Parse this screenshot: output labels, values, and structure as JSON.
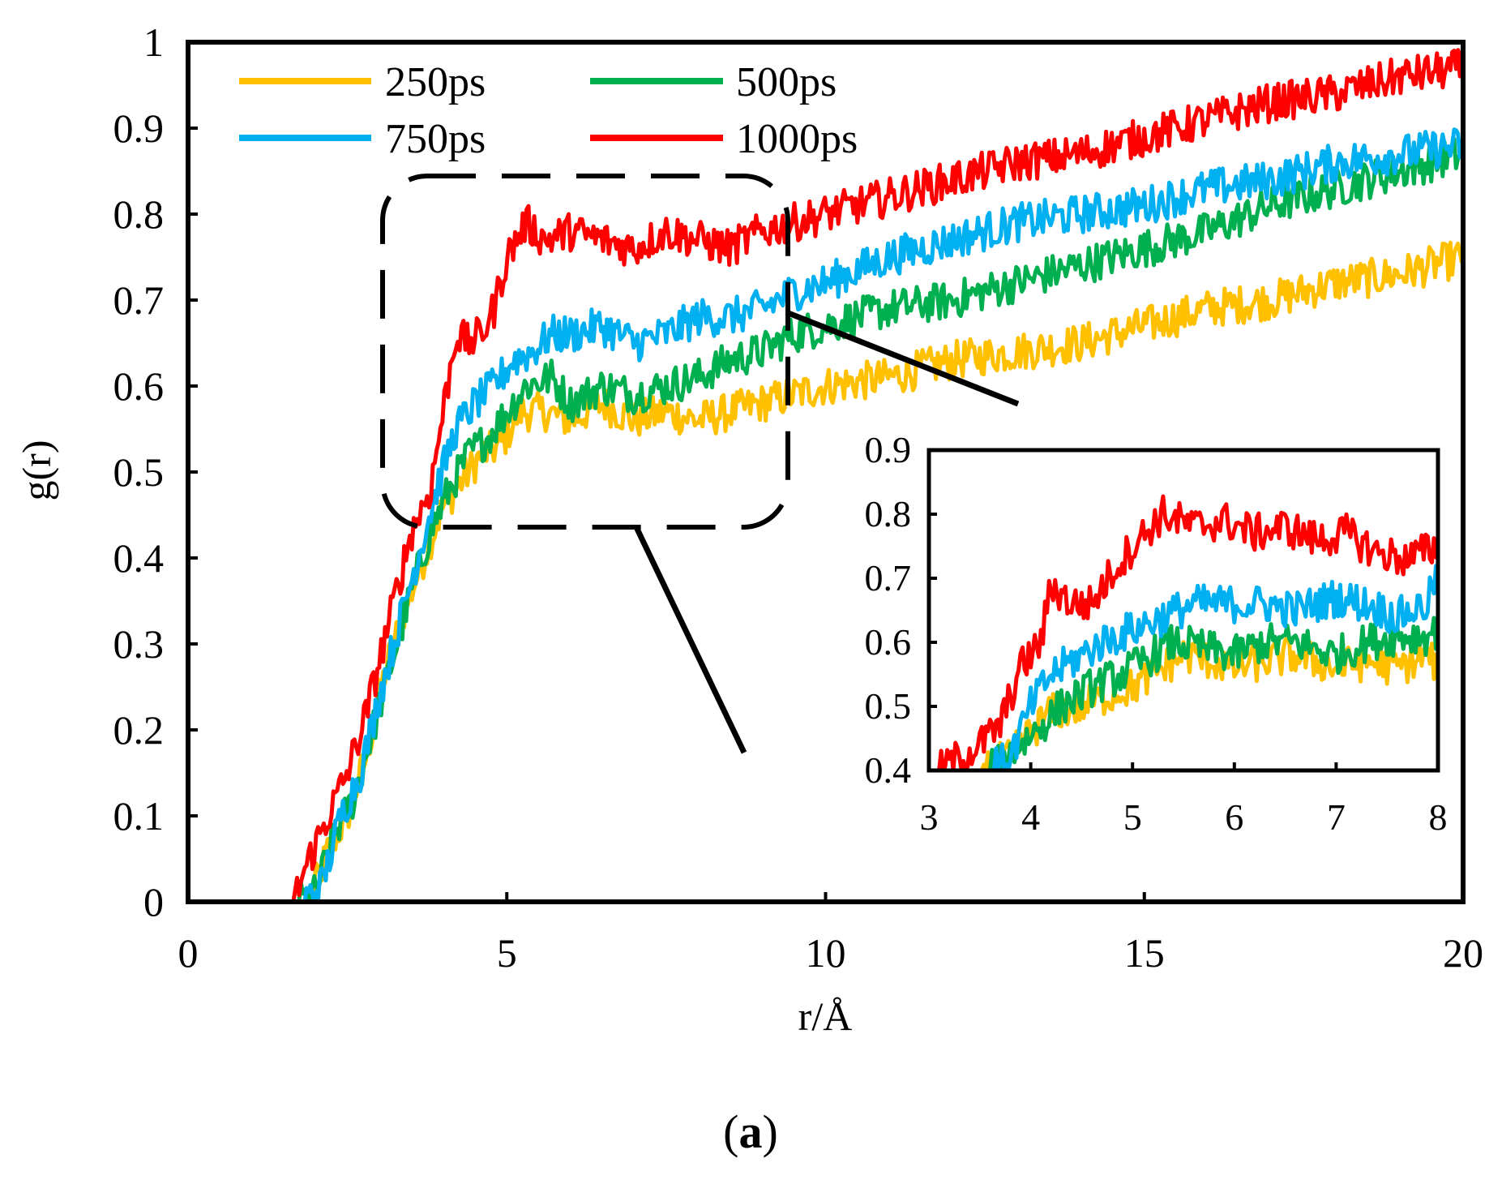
{
  "caption": {
    "open": "(",
    "letter": "a",
    "close": ")"
  },
  "chart_data": [
    {
      "type": "line",
      "role": "main",
      "xlabel": "r/Å",
      "ylabel": "g(r)",
      "xlim": [
        0,
        20
      ],
      "ylim": [
        0,
        1
      ],
      "xticks": [
        "0",
        "5",
        "10",
        "15",
        "20"
      ],
      "yticks": [
        "0",
        "0.1",
        "0.2",
        "0.3",
        "0.4",
        "0.5",
        "0.6",
        "0.7",
        "0.8",
        "0.9",
        "1"
      ],
      "legend_position": "top-left",
      "series": [
        {
          "name": "250ps",
          "color": "#FFC000",
          "x": [
            0,
            1.6,
            1.9,
            2.2,
            2.5,
            2.8,
            3.1,
            3.4,
            3.7,
            4.0,
            4.3,
            4.6,
            4.9,
            5.2,
            5.6,
            6.0,
            6.5,
            7.0,
            7.5,
            8.0,
            8.5,
            9.0,
            9.5,
            10.0,
            11.0,
            12.0,
            13.0,
            14.0,
            15.0,
            16.0,
            17.0,
            18.0,
            19.0,
            20.0
          ],
          "y": [
            0,
            0,
            0.0,
            0.06,
            0.1,
            0.17,
            0.27,
            0.34,
            0.4,
            0.46,
            0.49,
            0.52,
            0.53,
            0.57,
            0.57,
            0.56,
            0.58,
            0.56,
            0.57,
            0.56,
            0.57,
            0.58,
            0.59,
            0.6,
            0.61,
            0.63,
            0.64,
            0.65,
            0.67,
            0.69,
            0.7,
            0.72,
            0.73,
            0.75
          ]
        },
        {
          "name": "500ps",
          "color": "#00B050",
          "x": [
            0,
            1.7,
            2.0,
            2.3,
            2.6,
            2.9,
            3.2,
            3.5,
            3.8,
            4.1,
            4.4,
            4.7,
            5.0,
            5.3,
            5.7,
            6.0,
            6.5,
            7.0,
            7.5,
            8.0,
            8.5,
            9.0,
            9.5,
            10.0,
            11.0,
            12.0,
            13.0,
            14.0,
            15.0,
            16.0,
            17.0,
            18.0,
            19.0,
            20.0
          ],
          "y": [
            0,
            0,
            0.01,
            0.08,
            0.12,
            0.2,
            0.28,
            0.36,
            0.43,
            0.48,
            0.52,
            0.54,
            0.57,
            0.6,
            0.61,
            0.58,
            0.6,
            0.59,
            0.6,
            0.61,
            0.63,
            0.64,
            0.66,
            0.67,
            0.69,
            0.7,
            0.72,
            0.74,
            0.76,
            0.78,
            0.81,
            0.83,
            0.85,
            0.87
          ]
        },
        {
          "name": "750ps",
          "color": "#00B0F0",
          "x": [
            0,
            1.8,
            2.1,
            2.4,
            2.7,
            3.0,
            3.3,
            3.6,
            3.9,
            4.2,
            4.5,
            4.8,
            5.1,
            5.4,
            5.7,
            6.0,
            6.5,
            7.0,
            7.5,
            8.0,
            8.5,
            9.0,
            9.5,
            10.0,
            11.0,
            12.0,
            13.0,
            14.0,
            15.0,
            16.0,
            17.0,
            18.0,
            19.0,
            20.0
          ],
          "y": [
            0,
            0,
            0.02,
            0.1,
            0.15,
            0.24,
            0.32,
            0.4,
            0.48,
            0.55,
            0.58,
            0.6,
            0.63,
            0.64,
            0.66,
            0.66,
            0.67,
            0.65,
            0.66,
            0.68,
            0.68,
            0.69,
            0.71,
            0.72,
            0.75,
            0.77,
            0.79,
            0.8,
            0.81,
            0.83,
            0.84,
            0.86,
            0.87,
            0.88
          ]
        },
        {
          "name": "1000ps",
          "color": "#FF0000",
          "x": [
            0,
            1.65,
            1.9,
            2.2,
            2.5,
            2.8,
            3.0,
            3.2,
            3.5,
            3.8,
            4.0,
            4.2,
            4.4,
            4.6,
            4.8,
            5.0,
            5.3,
            5.6,
            6.0,
            6.5,
            7.0,
            7.5,
            8.0,
            8.5,
            9.0,
            9.5,
            10.0,
            11.0,
            12.0,
            13.0,
            14.0,
            15.0,
            16.0,
            17.0,
            18.0,
            19.0,
            20.0
          ],
          "y": [
            0,
            0,
            0.05,
            0.1,
            0.15,
            0.22,
            0.28,
            0.34,
            0.43,
            0.48,
            0.57,
            0.66,
            0.65,
            0.66,
            0.69,
            0.75,
            0.79,
            0.77,
            0.78,
            0.77,
            0.76,
            0.78,
            0.77,
            0.76,
            0.78,
            0.79,
            0.8,
            0.82,
            0.84,
            0.86,
            0.87,
            0.89,
            0.91,
            0.93,
            0.94,
            0.96,
            0.97
          ]
        }
      ]
    },
    {
      "type": "line",
      "role": "inset",
      "xlim": [
        3,
        8
      ],
      "ylim": [
        0.4,
        0.9
      ],
      "xticks": [
        "3",
        "4",
        "5",
        "6",
        "7",
        "8"
      ],
      "yticks": [
        "0.4",
        "0.5",
        "0.6",
        "0.7",
        "0.8",
        "0.9"
      ],
      "series": [
        {
          "name": "250ps",
          "color": "#FFC000",
          "x": [
            3.5,
            3.8,
            4.0,
            4.2,
            4.5,
            4.8,
            5.0,
            5.2,
            5.5,
            5.8,
            6.0,
            6.3,
            6.6,
            7.0,
            7.3,
            7.6,
            7.9,
            8.0
          ],
          "y": [
            0.4,
            0.42,
            0.46,
            0.49,
            0.5,
            0.52,
            0.53,
            0.55,
            0.58,
            0.57,
            0.56,
            0.57,
            0.58,
            0.56,
            0.57,
            0.56,
            0.58,
            0.56
          ]
        },
        {
          "name": "500ps",
          "color": "#00B050",
          "x": [
            3.6,
            3.9,
            4.1,
            4.3,
            4.6,
            4.9,
            5.1,
            5.4,
            5.7,
            6.0,
            6.3,
            6.6,
            7.0,
            7.3,
            7.6,
            7.9,
            8.0
          ],
          "y": [
            0.4,
            0.44,
            0.47,
            0.5,
            0.53,
            0.55,
            0.57,
            0.6,
            0.59,
            0.58,
            0.6,
            0.6,
            0.58,
            0.6,
            0.61,
            0.61,
            0.62
          ]
        },
        {
          "name": "750ps",
          "color": "#00B0F0",
          "x": [
            3.6,
            3.8,
            4.0,
            4.2,
            4.4,
            4.7,
            5.0,
            5.3,
            5.6,
            6.0,
            6.3,
            6.6,
            7.0,
            7.3,
            7.6,
            7.9,
            8.0
          ],
          "y": [
            0.4,
            0.42,
            0.5,
            0.55,
            0.57,
            0.6,
            0.62,
            0.64,
            0.66,
            0.66,
            0.66,
            0.65,
            0.67,
            0.66,
            0.64,
            0.66,
            0.72
          ]
        },
        {
          "name": "1000ps",
          "color": "#FF0000",
          "x": [
            3.1,
            3.3,
            3.5,
            3.7,
            3.9,
            4.1,
            4.2,
            4.4,
            4.6,
            4.8,
            5.0,
            5.3,
            5.6,
            5.9,
            6.2,
            6.5,
            6.8,
            7.1,
            7.4,
            7.7,
            8.0
          ],
          "y": [
            0.4,
            0.42,
            0.44,
            0.47,
            0.56,
            0.6,
            0.69,
            0.66,
            0.66,
            0.71,
            0.75,
            0.8,
            0.78,
            0.79,
            0.77,
            0.78,
            0.76,
            0.77,
            0.74,
            0.73,
            0.75
          ]
        }
      ]
    }
  ]
}
